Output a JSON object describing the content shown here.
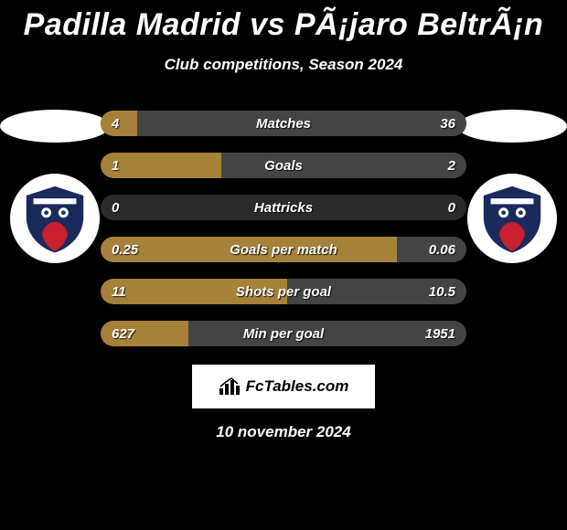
{
  "title": "Padilla Madrid vs PÃ¡jaro BeltrÃ¡n",
  "subtitle": "Club competitions, Season 2024",
  "date": "10 november 2024",
  "branding": "FcTables.com",
  "colors": {
    "left_fill": "#a6813a",
    "right_fill": "#444444",
    "row_bg": "#2b2b2b",
    "background": "#000000",
    "text": "#ffffff",
    "logo_navy": "#1a2a5c",
    "logo_red": "#c8202f"
  },
  "stats": [
    {
      "label": "Matches",
      "left_val": "4",
      "right_val": "36",
      "left_pct": 10,
      "right_pct": 90
    },
    {
      "label": "Goals",
      "left_val": "1",
      "right_val": "2",
      "left_pct": 33,
      "right_pct": 67
    },
    {
      "label": "Hattricks",
      "left_val": "0",
      "right_val": "0",
      "left_pct": 0,
      "right_pct": 0
    },
    {
      "label": "Goals per match",
      "left_val": "0.25",
      "right_val": "0.06",
      "left_pct": 81,
      "right_pct": 19
    },
    {
      "label": "Shots per goal",
      "left_val": "11",
      "right_val": "10.5",
      "left_pct": 51,
      "right_pct": 49
    },
    {
      "label": "Min per goal",
      "left_val": "627",
      "right_val": "1951",
      "left_pct": 24,
      "right_pct": 76
    }
  ]
}
